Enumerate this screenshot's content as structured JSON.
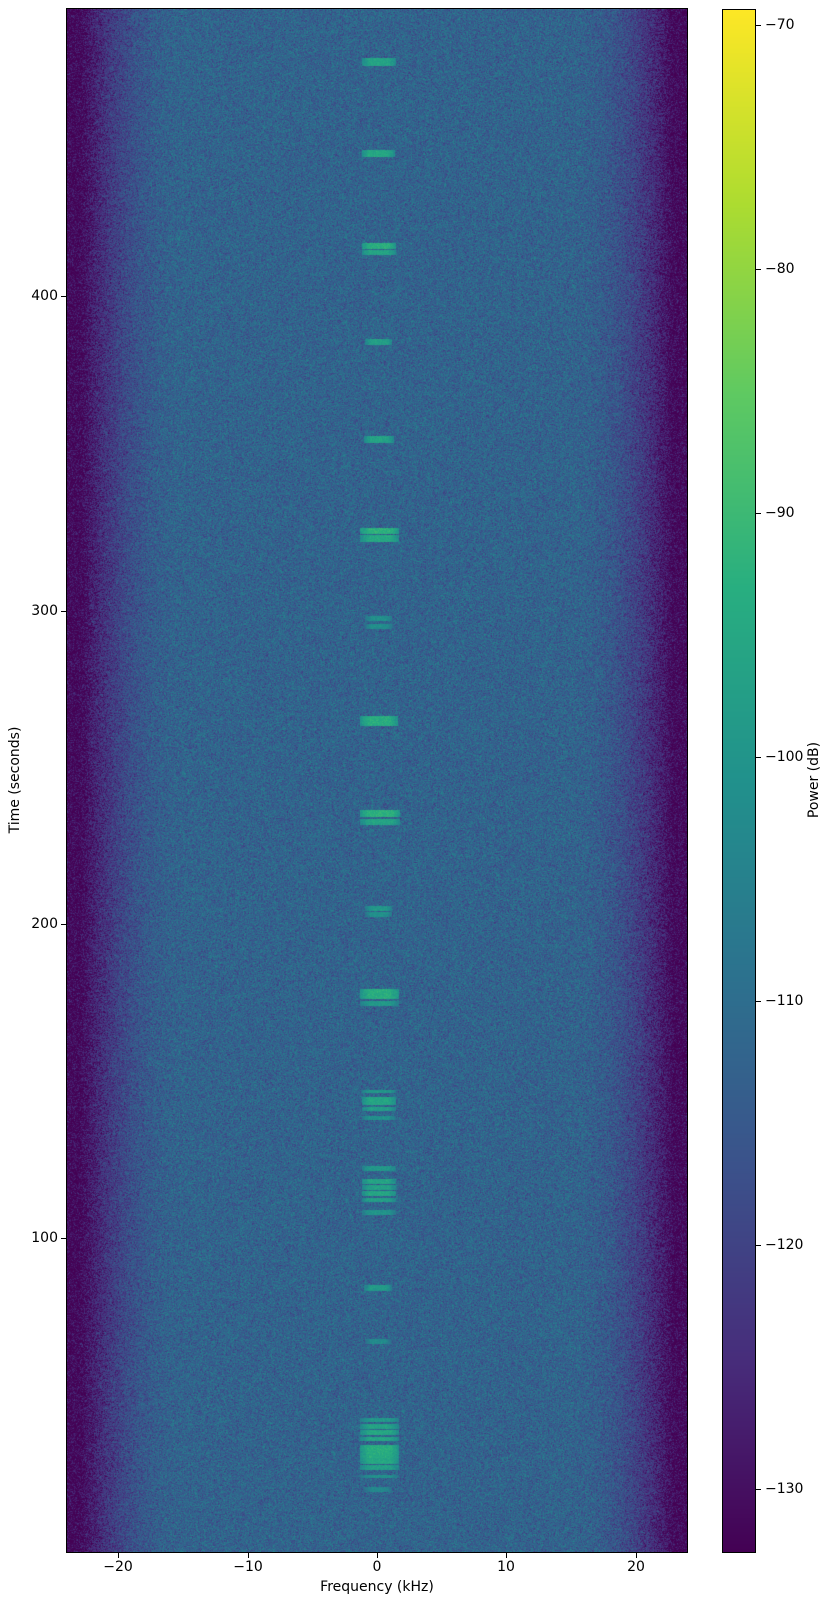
{
  "figure": {
    "background": "#ffffff",
    "spine_color": "#000000"
  },
  "chart_data": {
    "type": "heatmap",
    "subtype": "spectrogram-waterfall",
    "title": "",
    "xlabel": "Frequency (kHz)",
    "ylabel": "Time (seconds)",
    "colorbar_label": "Power (dB)",
    "colormap": "viridis",
    "x_range_khz": [
      -24,
      24
    ],
    "y_range_s": [
      0,
      491
    ],
    "power_range_db": [
      -132.6,
      -69.4
    ],
    "x_ticks": [
      -20,
      -10,
      0,
      10,
      20
    ],
    "x_tick_labels": [
      "−20",
      "−10",
      "0",
      "10",
      "20"
    ],
    "y_ticks": [
      100,
      200,
      300,
      400
    ],
    "y_tick_labels": [
      "100",
      "200",
      "300",
      "400"
    ],
    "colorbar_ticks": [
      -70,
      -80,
      -90,
      -100,
      -110,
      -120,
      -130
    ],
    "colorbar_tick_labels": [
      "−70",
      "−80",
      "−90",
      "−100",
      "−110",
      "−120",
      "−130"
    ],
    "noise_model": {
      "passband_db": -112.5,
      "flat_khz": 15,
      "rolloff_db_per_khz2": 0.3,
      "floor_db": -131.5,
      "std_db": 3.8
    },
    "bursts": [
      {
        "t": 474,
        "f_lo": -1.2,
        "f_hi": 1.5,
        "lines": [
          {
            "dt": 0,
            "w": 2.5,
            "db": -96
          }
        ]
      },
      {
        "t": 445,
        "f_lo": -1.2,
        "f_hi": 1.4,
        "lines": [
          {
            "dt": 0,
            "w": 2.5,
            "db": -95
          }
        ]
      },
      {
        "t": 415,
        "f_lo": -1.2,
        "f_hi": 1.5,
        "lines": [
          {
            "dt": 0.5,
            "w": 2,
            "db": -93
          },
          {
            "dt": -1.5,
            "w": 1.5,
            "db": -96
          }
        ]
      },
      {
        "t": 385,
        "f_lo": -0.9,
        "f_hi": 1.2,
        "lines": [
          {
            "dt": 0,
            "w": 2,
            "db": -97
          }
        ]
      },
      {
        "t": 354,
        "f_lo": -1.0,
        "f_hi": 1.3,
        "lines": [
          {
            "dt": 0,
            "w": 2,
            "db": -96
          }
        ]
      },
      {
        "t": 324,
        "f_lo": -1.3,
        "f_hi": 1.7,
        "lines": [
          {
            "dt": 1,
            "w": 2,
            "db": -92.5
          },
          {
            "dt": -1.5,
            "w": 2,
            "db": -95
          }
        ]
      },
      {
        "t": 296,
        "f_lo": -0.9,
        "f_hi": 1.2,
        "lines": [
          {
            "dt": 1,
            "w": 1.5,
            "db": -101
          },
          {
            "dt": -1.5,
            "w": 1.5,
            "db": -101.5
          }
        ]
      },
      {
        "t": 264,
        "f_lo": -1.3,
        "f_hi": 1.6,
        "lines": [
          {
            "dt": 0.5,
            "w": 3,
            "db": -93.5
          }
        ]
      },
      {
        "t": 234,
        "f_lo": -1.3,
        "f_hi": 1.8,
        "lines": [
          {
            "dt": 1,
            "w": 2.5,
            "db": -92.5
          },
          {
            "dt": -1.8,
            "w": 1.8,
            "db": -96
          }
        ]
      },
      {
        "t": 204,
        "f_lo": -0.9,
        "f_hi": 1.2,
        "lines": [
          {
            "dt": 0.8,
            "w": 1.8,
            "db": -99.5
          },
          {
            "dt": -1.2,
            "w": 1.5,
            "db": -101
          }
        ]
      },
      {
        "t": 177,
        "f_lo": -1.3,
        "f_hi": 1.7,
        "lines": [
          {
            "dt": 0.5,
            "w": 3,
            "db": -93.5
          },
          {
            "dt": -2.5,
            "w": 1.5,
            "db": -99
          }
        ]
      },
      {
        "t": 142,
        "f_lo": -1.2,
        "f_hi": 1.5,
        "lines": [
          {
            "dt": 4.5,
            "w": 1.2,
            "db": -99
          },
          {
            "dt": 1.5,
            "w": 2.5,
            "db": -95.5
          },
          {
            "dt": -1,
            "w": 1.5,
            "db": -98
          },
          {
            "dt": -4,
            "w": 1.2,
            "db": -101
          }
        ]
      },
      {
        "t": 115,
        "f_lo": -1.2,
        "f_hi": 1.5,
        "lines": [
          {
            "dt": 7,
            "w": 1.5,
            "db": -99
          },
          {
            "dt": 3,
            "w": 1.5,
            "db": -96
          },
          {
            "dt": 1,
            "w": 1.5,
            "db": -97
          },
          {
            "dt": -1,
            "w": 1.5,
            "db": -95.5
          },
          {
            "dt": -3,
            "w": 1.5,
            "db": -97.5
          },
          {
            "dt": -7,
            "w": 1.5,
            "db": -100
          }
        ]
      },
      {
        "t": 84,
        "f_lo": -1.0,
        "f_hi": 1.2,
        "lines": [
          {
            "dt": 0,
            "w": 2,
            "db": -98.5
          }
        ]
      },
      {
        "t": 67,
        "f_lo": -0.9,
        "f_hi": 1.1,
        "lines": [
          {
            "dt": 0,
            "w": 1.5,
            "db": -102.5
          }
        ]
      },
      {
        "t": 32,
        "f_lo": -1.3,
        "f_hi": 1.7,
        "lines": [
          {
            "dt": 10,
            "w": 1.2,
            "db": -99
          },
          {
            "dt": 8,
            "w": 1.5,
            "db": -96.5
          },
          {
            "dt": 6,
            "w": 1.8,
            "db": -95
          },
          {
            "dt": 4,
            "w": 1.5,
            "db": -96
          },
          {
            "dt": 1,
            "w": 2,
            "db": -93.5
          },
          {
            "dt": -1,
            "w": 2,
            "db": -94
          },
          {
            "dt": -3,
            "w": 1.8,
            "db": -95
          },
          {
            "dt": -5,
            "w": 1.5,
            "db": -97
          },
          {
            "dt": -8,
            "w": 1,
            "db": -101
          }
        ]
      },
      {
        "t": 20,
        "f_lo": -1.0,
        "f_hi": 1.2,
        "lines": [
          {
            "dt": 0,
            "w": 1.5,
            "db": -103.5
          }
        ]
      }
    ],
    "viridis_stops": [
      "#440154",
      "#472d7b",
      "#3b528b",
      "#2c728e",
      "#21918c",
      "#28ae80",
      "#5ec962",
      "#addc30",
      "#fde725"
    ]
  }
}
